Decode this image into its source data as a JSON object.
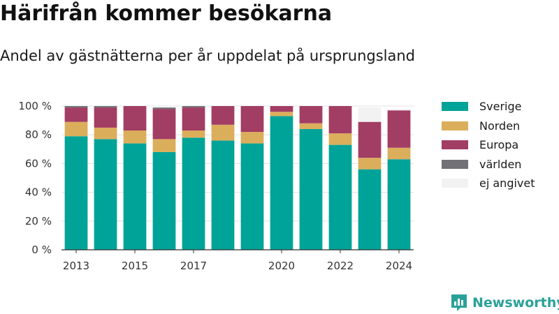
{
  "header": {
    "title": "Härifrån kommer besökarna",
    "subtitle": "Andel av gästnätterna per år uppdelat på ursprungsland"
  },
  "brand": {
    "name": "Newsworthy",
    "icon": "newsworthy-logo-icon",
    "color": "#2aa198"
  },
  "chart_data": {
    "type": "bar",
    "stacked": true,
    "title": "",
    "xlabel": "",
    "ylabel": "",
    "ylim": [
      0,
      100
    ],
    "y_ticks": [
      0,
      20,
      40,
      60,
      80,
      100
    ],
    "y_tick_suffix": " %",
    "grid": true,
    "legend_position": "right",
    "categories": [
      "2013",
      "2014",
      "2015",
      "2016",
      "2017",
      "2018",
      "2019",
      "2020",
      "2021",
      "2022",
      "2023",
      "2024"
    ],
    "x_tick_labels": [
      "2013",
      "2015",
      "2017",
      "2020",
      "2022",
      "2024"
    ],
    "series": [
      {
        "name": "Sverige",
        "color": "#00a398",
        "values": [
          79,
          77,
          74,
          68,
          78,
          76,
          74,
          93,
          84,
          73,
          56,
          63
        ]
      },
      {
        "name": "Norden",
        "color": "#dbae5c",
        "values": [
          10,
          8,
          9,
          9,
          5,
          11,
          8,
          3,
          4,
          8,
          8,
          8
        ]
      },
      {
        "name": "Europa",
        "color": "#a23d64",
        "values": [
          10,
          14,
          17,
          21,
          16,
          13,
          18,
          4,
          12,
          19,
          25,
          26
        ]
      },
      {
        "name": "världen",
        "color": "#727276",
        "values": [
          1,
          1,
          0,
          1,
          1,
          0,
          0,
          0,
          0,
          0,
          0,
          0
        ]
      },
      {
        "name": "ej angivet",
        "color": "#f2f2f2",
        "values": [
          0,
          0,
          0,
          0,
          0,
          0,
          0,
          0,
          0,
          0,
          10,
          1
        ]
      }
    ]
  }
}
